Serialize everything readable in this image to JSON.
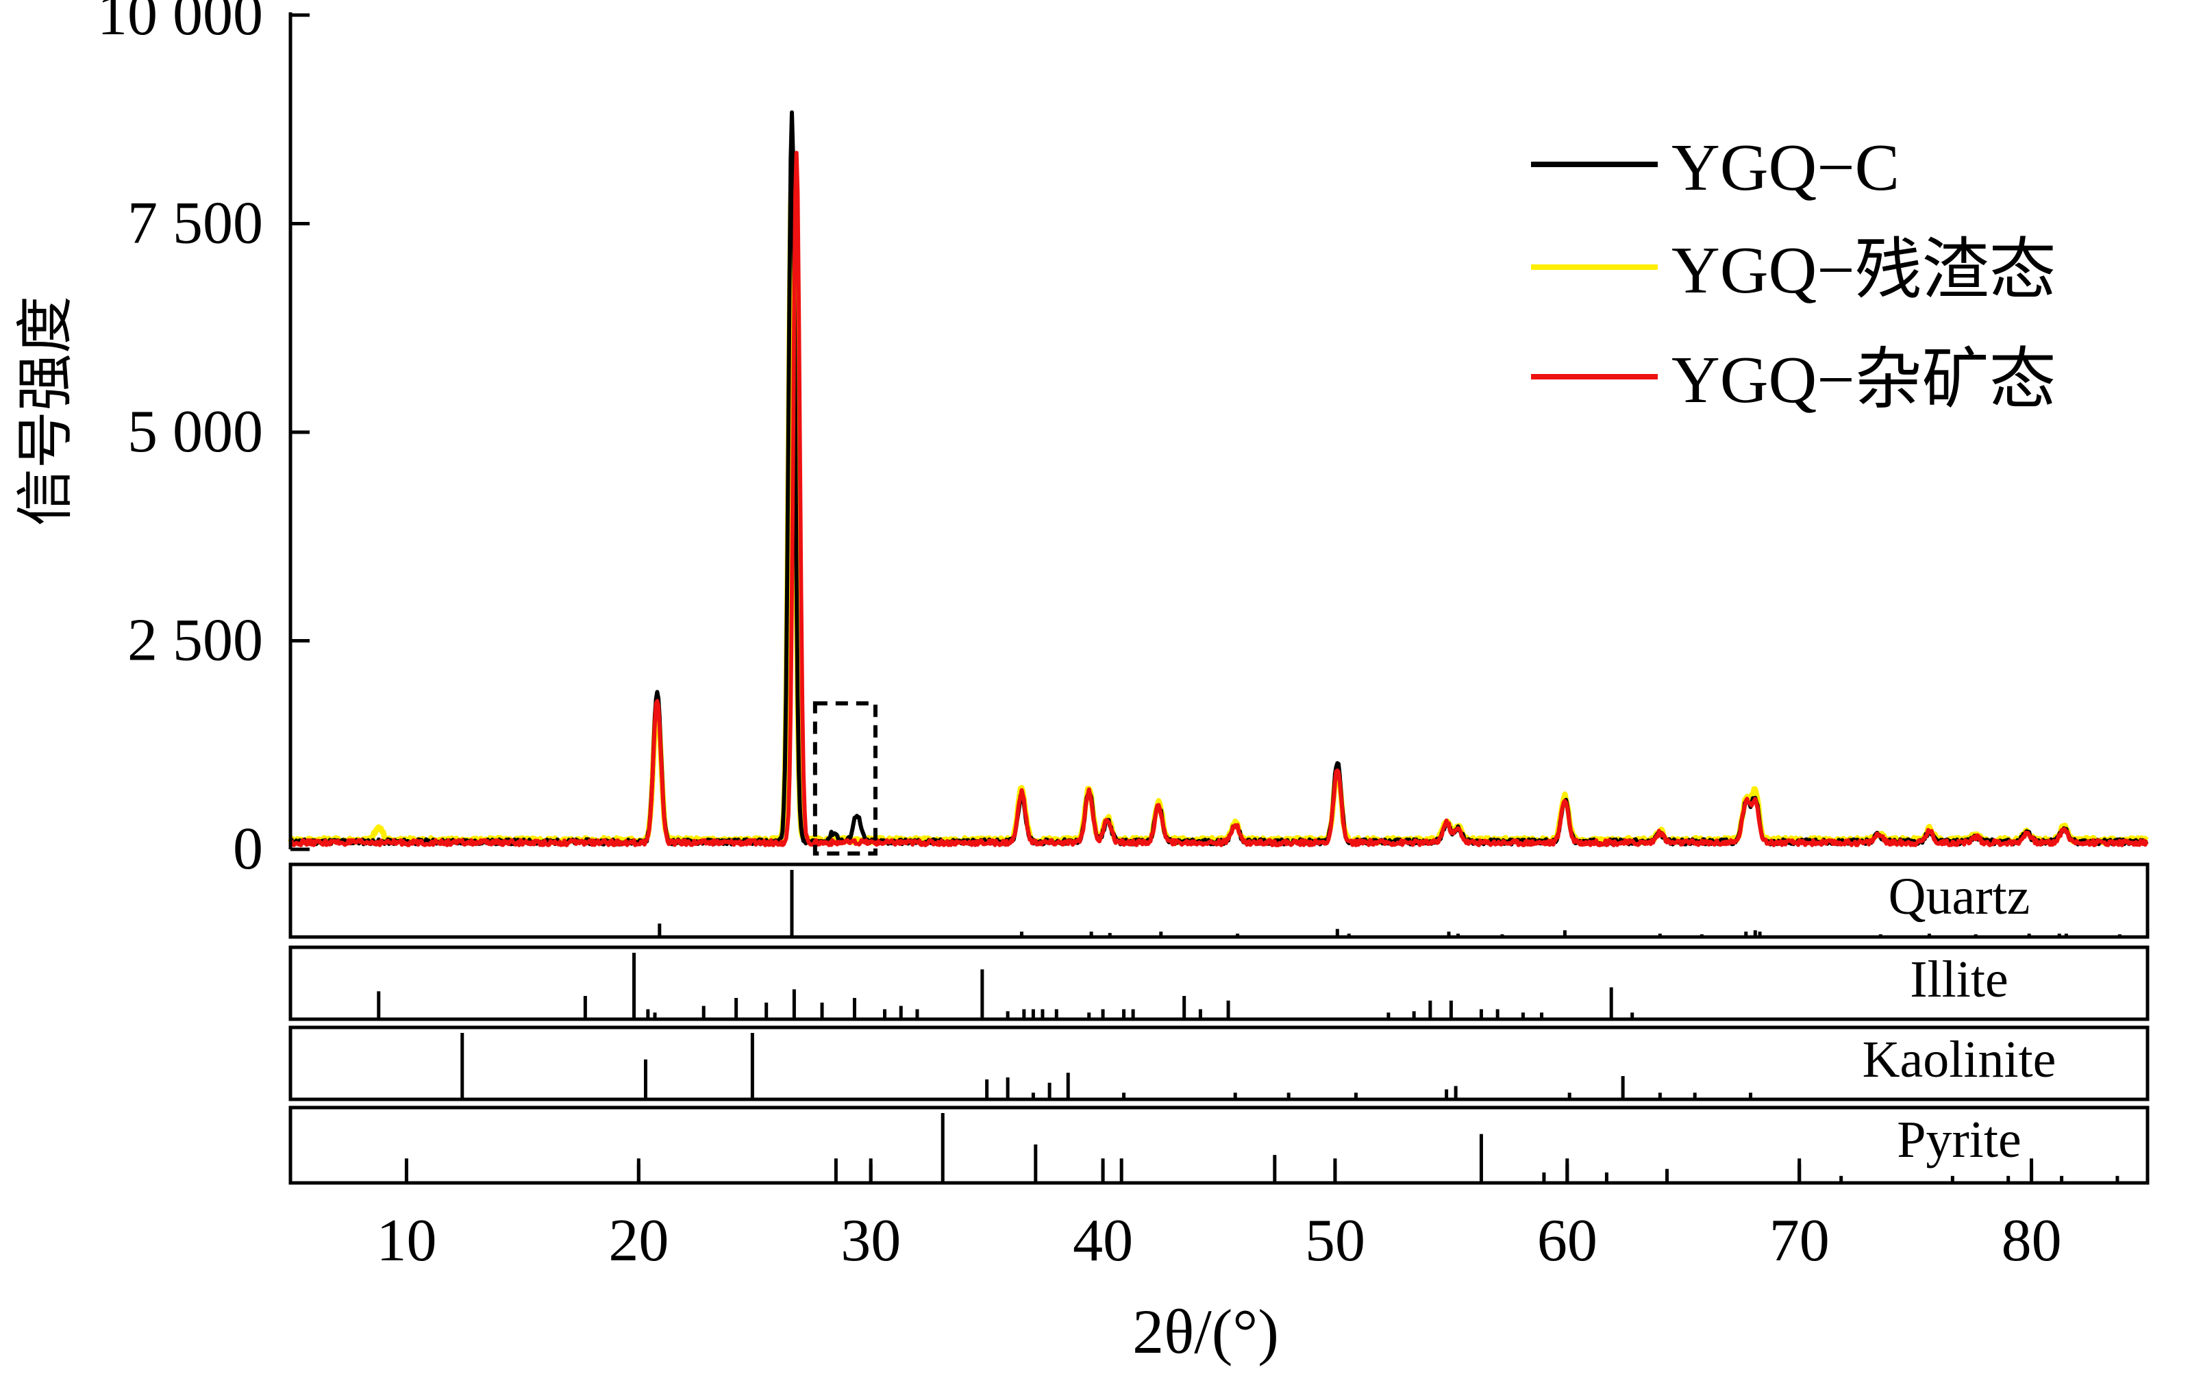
{
  "chart_data": {
    "type": "line",
    "title": "",
    "xlabel": "2θ/(°)",
    "ylabel": "信号强度",
    "xlim": [
      5,
      85
    ],
    "ylim": [
      0,
      10000
    ],
    "x_ticks": [
      10,
      20,
      30,
      40,
      50,
      60,
      70,
      80
    ],
    "y_ticks": [
      0,
      2500,
      5000,
      7500,
      10000
    ],
    "y_tick_labels": [
      "0",
      "2 500",
      "5 000",
      "7 500",
      "10 000"
    ],
    "legend_position": "top-right",
    "series": [
      {
        "name": "YGQ−C",
        "color": "#000000",
        "baseline": 90,
        "peaks": [
          {
            "x": 20.8,
            "y": 1900
          },
          {
            "x": 26.6,
            "y": 8850
          },
          {
            "x": 28.4,
            "y": 200
          },
          {
            "x": 29.4,
            "y": 420
          },
          {
            "x": 36.5,
            "y": 650
          },
          {
            "x": 39.4,
            "y": 700
          },
          {
            "x": 40.2,
            "y": 350
          },
          {
            "x": 42.4,
            "y": 520
          },
          {
            "x": 45.7,
            "y": 300
          },
          {
            "x": 50.1,
            "y": 1050
          },
          {
            "x": 54.8,
            "y": 300
          },
          {
            "x": 55.3,
            "y": 250
          },
          {
            "x": 59.9,
            "y": 600
          },
          {
            "x": 64.0,
            "y": 180
          },
          {
            "x": 67.7,
            "y": 550
          },
          {
            "x": 68.1,
            "y": 600
          },
          {
            "x": 73.4,
            "y": 180
          },
          {
            "x": 75.6,
            "y": 200
          },
          {
            "x": 77.6,
            "y": 150
          },
          {
            "x": 79.8,
            "y": 200
          },
          {
            "x": 81.4,
            "y": 260
          }
        ]
      },
      {
        "name": "YGQ−残渣态",
        "color": "#ffee00",
        "baseline": 110,
        "peaks": [
          {
            "x": 8.8,
            "y": 260
          },
          {
            "x": 20.8,
            "y": 1750
          },
          {
            "x": 26.6,
            "y": 8200
          },
          {
            "x": 36.5,
            "y": 730
          },
          {
            "x": 39.4,
            "y": 750
          },
          {
            "x": 40.2,
            "y": 380
          },
          {
            "x": 42.4,
            "y": 560
          },
          {
            "x": 45.7,
            "y": 320
          },
          {
            "x": 50.1,
            "y": 950
          },
          {
            "x": 54.8,
            "y": 330
          },
          {
            "x": 55.3,
            "y": 260
          },
          {
            "x": 59.9,
            "y": 650
          },
          {
            "x": 64.0,
            "y": 220
          },
          {
            "x": 67.7,
            "y": 580
          },
          {
            "x": 68.1,
            "y": 700
          },
          {
            "x": 73.4,
            "y": 200
          },
          {
            "x": 75.6,
            "y": 250
          },
          {
            "x": 77.6,
            "y": 170
          },
          {
            "x": 79.8,
            "y": 220
          },
          {
            "x": 81.4,
            "y": 280
          }
        ]
      },
      {
        "name": "YGQ−杂矿态",
        "color": "#ee1111",
        "baseline": 80,
        "peaks": [
          {
            "x": 20.8,
            "y": 1800
          },
          {
            "x": 26.8,
            "y": 8350
          },
          {
            "x": 36.5,
            "y": 680
          },
          {
            "x": 39.4,
            "y": 700
          },
          {
            "x": 40.2,
            "y": 360
          },
          {
            "x": 42.4,
            "y": 520
          },
          {
            "x": 45.7,
            "y": 300
          },
          {
            "x": 50.1,
            "y": 950
          },
          {
            "x": 54.8,
            "y": 320
          },
          {
            "x": 55.3,
            "y": 240
          },
          {
            "x": 59.9,
            "y": 600
          },
          {
            "x": 64.0,
            "y": 200
          },
          {
            "x": 67.7,
            "y": 560
          },
          {
            "x": 68.1,
            "y": 580
          },
          {
            "x": 73.4,
            "y": 180
          },
          {
            "x": 75.6,
            "y": 220
          },
          {
            "x": 77.6,
            "y": 150
          },
          {
            "x": 79.8,
            "y": 200
          },
          {
            "x": 81.4,
            "y": 250
          }
        ]
      }
    ],
    "annotation": {
      "type": "dashed-box",
      "x_range": [
        27.6,
        30.2
      ],
      "y_range": [
        -50,
        1750
      ]
    },
    "reference_panels": [
      {
        "name": "Quartz",
        "lines": [
          {
            "x": 20.9,
            "h": 0.2
          },
          {
            "x": 26.6,
            "h": 1.0
          },
          {
            "x": 36.5,
            "h": 0.08
          },
          {
            "x": 39.5,
            "h": 0.08
          },
          {
            "x": 40.3,
            "h": 0.06
          },
          {
            "x": 42.5,
            "h": 0.08
          },
          {
            "x": 45.8,
            "h": 0.05
          },
          {
            "x": 50.1,
            "h": 0.12
          },
          {
            "x": 50.6,
            "h": 0.05
          },
          {
            "x": 54.9,
            "h": 0.08
          },
          {
            "x": 55.3,
            "h": 0.05
          },
          {
            "x": 57.2,
            "h": 0.04
          },
          {
            "x": 59.9,
            "h": 0.1
          },
          {
            "x": 64.0,
            "h": 0.05
          },
          {
            "x": 65.8,
            "h": 0.04
          },
          {
            "x": 67.7,
            "h": 0.08
          },
          {
            "x": 68.1,
            "h": 0.1
          },
          {
            "x": 68.3,
            "h": 0.08
          },
          {
            "x": 73.5,
            "h": 0.04
          },
          {
            "x": 75.6,
            "h": 0.05
          },
          {
            "x": 77.6,
            "h": 0.04
          },
          {
            "x": 79.9,
            "h": 0.05
          },
          {
            "x": 81.2,
            "h": 0.05
          },
          {
            "x": 81.5,
            "h": 0.05
          },
          {
            "x": 83.8,
            "h": 0.04
          }
        ]
      },
      {
        "name": "Illite",
        "lines": [
          {
            "x": 8.8,
            "h": 0.42
          },
          {
            "x": 17.7,
            "h": 0.35
          },
          {
            "x": 19.8,
            "h": 1.0
          },
          {
            "x": 20.4,
            "h": 0.15
          },
          {
            "x": 20.7,
            "h": 0.1
          },
          {
            "x": 22.8,
            "h": 0.2
          },
          {
            "x": 24.2,
            "h": 0.32
          },
          {
            "x": 25.5,
            "h": 0.25
          },
          {
            "x": 26.7,
            "h": 0.45
          },
          {
            "x": 27.9,
            "h": 0.25
          },
          {
            "x": 29.3,
            "h": 0.32
          },
          {
            "x": 30.6,
            "h": 0.15
          },
          {
            "x": 31.3,
            "h": 0.2
          },
          {
            "x": 32.0,
            "h": 0.15
          },
          {
            "x": 34.8,
            "h": 0.75
          },
          {
            "x": 35.9,
            "h": 0.12
          },
          {
            "x": 36.6,
            "h": 0.15
          },
          {
            "x": 37.0,
            "h": 0.15
          },
          {
            "x": 37.4,
            "h": 0.15
          },
          {
            "x": 38.0,
            "h": 0.15
          },
          {
            "x": 39.4,
            "h": 0.1
          },
          {
            "x": 40.0,
            "h": 0.15
          },
          {
            "x": 40.9,
            "h": 0.15
          },
          {
            "x": 41.3,
            "h": 0.15
          },
          {
            "x": 43.5,
            "h": 0.35
          },
          {
            "x": 44.2,
            "h": 0.15
          },
          {
            "x": 45.4,
            "h": 0.28
          },
          {
            "x": 52.3,
            "h": 0.1
          },
          {
            "x": 53.4,
            "h": 0.12
          },
          {
            "x": 54.1,
            "h": 0.28
          },
          {
            "x": 55.0,
            "h": 0.28
          },
          {
            "x": 56.3,
            "h": 0.15
          },
          {
            "x": 57.0,
            "h": 0.15
          },
          {
            "x": 58.1,
            "h": 0.1
          },
          {
            "x": 58.9,
            "h": 0.1
          },
          {
            "x": 61.9,
            "h": 0.48
          },
          {
            "x": 62.8,
            "h": 0.1
          }
        ]
      },
      {
        "name": "Kaolinite",
        "lines": [
          {
            "x": 12.4,
            "h": 1.0
          },
          {
            "x": 20.3,
            "h": 0.6
          },
          {
            "x": 24.9,
            "h": 1.0
          },
          {
            "x": 35.0,
            "h": 0.3
          },
          {
            "x": 35.9,
            "h": 0.33
          },
          {
            "x": 37.0,
            "h": 0.1
          },
          {
            "x": 37.7,
            "h": 0.25
          },
          {
            "x": 38.5,
            "h": 0.4
          },
          {
            "x": 40.9,
            "h": 0.1
          },
          {
            "x": 45.7,
            "h": 0.1
          },
          {
            "x": 48.0,
            "h": 0.1
          },
          {
            "x": 50.9,
            "h": 0.1
          },
          {
            "x": 54.8,
            "h": 0.15
          },
          {
            "x": 55.2,
            "h": 0.2
          },
          {
            "x": 60.1,
            "h": 0.1
          },
          {
            "x": 62.4,
            "h": 0.35
          },
          {
            "x": 64.0,
            "h": 0.1
          },
          {
            "x": 65.5,
            "h": 0.1
          },
          {
            "x": 67.9,
            "h": 0.1
          }
        ]
      },
      {
        "name": "Pyrite",
        "lines": [
          {
            "x": 10.0,
            "h": 0.35
          },
          {
            "x": 20.0,
            "h": 0.35
          },
          {
            "x": 28.5,
            "h": 0.35
          },
          {
            "x": 30.0,
            "h": 0.35
          },
          {
            "x": 33.1,
            "h": 1.0
          },
          {
            "x": 37.1,
            "h": 0.55
          },
          {
            "x": 40.8,
            "h": 0.35
          },
          {
            "x": 40.0,
            "h": 0.35
          },
          {
            "x": 47.4,
            "h": 0.4
          },
          {
            "x": 50.0,
            "h": 0.35
          },
          {
            "x": 56.3,
            "h": 0.7
          },
          {
            "x": 59.0,
            "h": 0.15
          },
          {
            "x": 60.0,
            "h": 0.35
          },
          {
            "x": 61.7,
            "h": 0.15
          },
          {
            "x": 64.3,
            "h": 0.2
          },
          {
            "x": 70.0,
            "h": 0.35
          },
          {
            "x": 71.8,
            "h": 0.1
          },
          {
            "x": 76.6,
            "h": 0.1
          },
          {
            "x": 79.0,
            "h": 0.1
          },
          {
            "x": 80.0,
            "h": 0.35
          },
          {
            "x": 81.3,
            "h": 0.1
          },
          {
            "x": 83.7,
            "h": 0.1
          }
        ]
      }
    ]
  }
}
